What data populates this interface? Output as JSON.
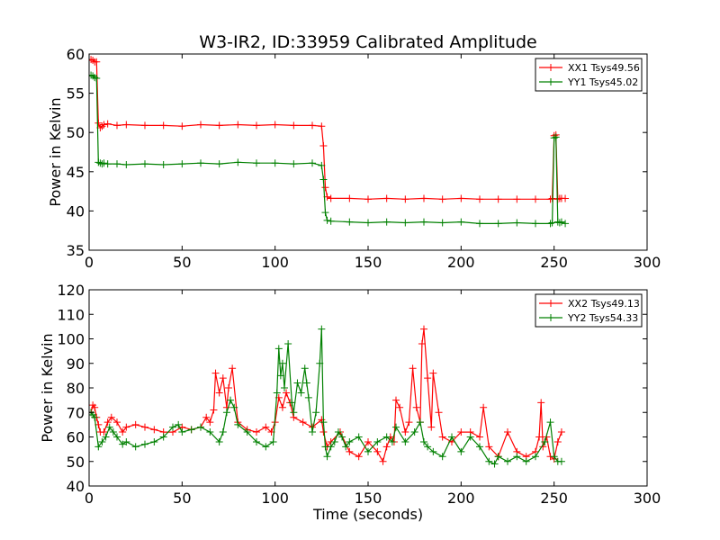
{
  "title": "W3-IR2, ID:33959 Calibrated Amplitude",
  "chart_data": [
    {
      "type": "line",
      "ylabel": "Power in Kelvin",
      "xlabel": "",
      "xlim": [
        0,
        300
      ],
      "ylim": [
        35,
        60
      ],
      "xticks": [
        0,
        50,
        100,
        150,
        200,
        250,
        300
      ],
      "yticks": [
        35,
        40,
        45,
        50,
        55,
        60
      ],
      "legend_position": "top-right",
      "series": [
        {
          "name": "XX1 Tsys49.56",
          "color": "#ff0000",
          "x": [
            1,
            2,
            3,
            4,
            5,
            6,
            7,
            8,
            10,
            15,
            20,
            30,
            40,
            50,
            60,
            70,
            80,
            90,
            100,
            110,
            120,
            125,
            126,
            127,
            128,
            130,
            140,
            150,
            160,
            170,
            180,
            190,
            200,
            210,
            220,
            230,
            240,
            248,
            249,
            250,
            251,
            252,
            253,
            254,
            256
          ],
          "y": [
            59.3,
            59.2,
            59.0,
            59.0,
            51.2,
            50.6,
            50.8,
            51.0,
            51.1,
            50.9,
            51.0,
            50.9,
            50.9,
            50.8,
            51.0,
            50.9,
            51.0,
            50.9,
            51.0,
            50.9,
            50.9,
            50.8,
            48.3,
            43.0,
            41.8,
            41.6,
            41.6,
            41.5,
            41.6,
            41.5,
            41.6,
            41.5,
            41.6,
            41.5,
            41.5,
            41.5,
            41.5,
            41.5,
            41.6,
            49.6,
            49.7,
            41.5,
            41.6,
            41.6,
            41.6
          ]
        },
        {
          "name": "YY1 Tsys45.02",
          "color": "#008000",
          "x": [
            1,
            2,
            3,
            4,
            5,
            6,
            7,
            8,
            10,
            15,
            20,
            30,
            40,
            50,
            60,
            70,
            80,
            90,
            100,
            110,
            120,
            125,
            126,
            127,
            128,
            130,
            140,
            150,
            160,
            170,
            180,
            190,
            200,
            210,
            220,
            230,
            240,
            248,
            249,
            250,
            251,
            252,
            253,
            254,
            256
          ],
          "y": [
            57.3,
            57.2,
            57.0,
            56.9,
            46.2,
            46.1,
            46.0,
            46.1,
            46.0,
            46.0,
            45.9,
            46.0,
            45.9,
            46.0,
            46.1,
            46.0,
            46.2,
            46.1,
            46.1,
            46.0,
            46.1,
            45.8,
            44.0,
            39.8,
            38.8,
            38.7,
            38.6,
            38.5,
            38.6,
            38.5,
            38.6,
            38.5,
            38.6,
            38.4,
            38.4,
            38.5,
            38.4,
            38.4,
            38.5,
            49.3,
            49.4,
            38.6,
            38.5,
            38.6,
            38.4
          ]
        }
      ]
    },
    {
      "type": "line",
      "ylabel": "Power in Kelvin",
      "xlabel": "Time (seconds)",
      "xlim": [
        0,
        300
      ],
      "ylim": [
        40,
        120
      ],
      "xticks": [
        0,
        50,
        100,
        150,
        200,
        250,
        300
      ],
      "yticks": [
        40,
        50,
        60,
        70,
        80,
        90,
        100,
        110,
        120
      ],
      "legend_position": "top-right",
      "series": [
        {
          "name": "XX2 Tsys49.13",
          "color": "#ff0000",
          "x": [
            1,
            2,
            3,
            4,
            5,
            6,
            8,
            10,
            12,
            15,
            18,
            20,
            25,
            30,
            35,
            40,
            45,
            50,
            55,
            60,
            63,
            65,
            67,
            68,
            70,
            72,
            74,
            75,
            77,
            80,
            85,
            90,
            95,
            98,
            100,
            102,
            104,
            106,
            108,
            110,
            115,
            120,
            125,
            126,
            128,
            130,
            135,
            140,
            145,
            150,
            155,
            158,
            160,
            162,
            164,
            165,
            167,
            170,
            172,
            174,
            176,
            178,
            179,
            180,
            182,
            184,
            185,
            188,
            190,
            195,
            200,
            205,
            210,
            212,
            215,
            220,
            225,
            230,
            235,
            240,
            242,
            243,
            244,
            246,
            248,
            250,
            252,
            254
          ],
          "y": [
            70,
            73,
            72,
            68,
            65,
            62,
            62,
            66,
            68,
            66,
            62,
            64,
            65,
            64,
            63,
            62,
            62,
            64,
            63,
            64,
            68,
            66,
            71,
            86,
            78,
            84,
            72,
            80,
            88,
            66,
            63,
            62,
            64,
            62,
            66,
            76,
            72,
            78,
            74,
            68,
            66,
            64,
            67,
            62,
            56,
            58,
            62,
            54,
            52,
            58,
            54,
            50,
            56,
            60,
            58,
            75,
            72,
            62,
            66,
            88,
            72,
            66,
            98,
            104,
            84,
            64,
            86,
            70,
            60,
            58,
            62,
            62,
            60,
            72,
            56,
            52,
            62,
            54,
            52,
            54,
            60,
            74,
            56,
            60,
            52,
            51,
            58,
            62
          ]
        },
        {
          "name": "YY2 Tsys54.33",
          "color": "#008000",
          "x": [
            1,
            2,
            3,
            5,
            7,
            9,
            11,
            13,
            15,
            18,
            20,
            25,
            30,
            35,
            40,
            45,
            48,
            50,
            55,
            60,
            65,
            70,
            72,
            74,
            76,
            78,
            80,
            85,
            90,
            95,
            99,
            101,
            102,
            103,
            104,
            105,
            107,
            109,
            110,
            112,
            114,
            116,
            117,
            118,
            120,
            122,
            124,
            125,
            126,
            127,
            128,
            130,
            132,
            134,
            136,
            138,
            140,
            145,
            150,
            155,
            160,
            163,
            165,
            170,
            175,
            178,
            180,
            182,
            185,
            190,
            195,
            200,
            205,
            210,
            215,
            218,
            220,
            225,
            230,
            235,
            240,
            245,
            248,
            250,
            252,
            254
          ],
          "y": [
            70,
            69,
            68,
            56,
            58,
            60,
            64,
            62,
            60,
            57,
            58,
            56,
            57,
            58,
            60,
            64,
            65,
            62,
            63,
            64,
            62,
            58,
            62,
            70,
            75,
            72,
            65,
            62,
            58,
            56,
            58,
            78,
            96,
            85,
            90,
            80,
            98,
            74,
            70,
            82,
            78,
            88,
            82,
            76,
            62,
            70,
            90,
            104,
            66,
            56,
            52,
            56,
            58,
            62,
            60,
            56,
            58,
            60,
            54,
            58,
            60,
            58,
            64,
            58,
            62,
            66,
            58,
            56,
            54,
            52,
            60,
            54,
            60,
            56,
            50,
            49,
            52,
            50,
            52,
            50,
            52,
            58,
            66,
            52,
            50,
            50
          ]
        }
      ]
    }
  ]
}
